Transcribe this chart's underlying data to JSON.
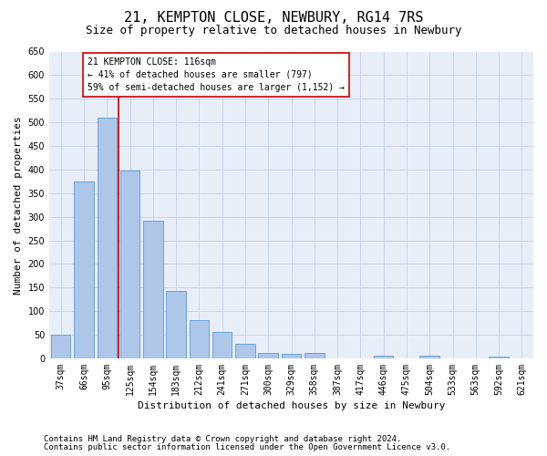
{
  "title": "21, KEMPTON CLOSE, NEWBURY, RG14 7RS",
  "subtitle": "Size of property relative to detached houses in Newbury",
  "xlabel": "Distribution of detached houses by size in Newbury",
  "ylabel": "Number of detached properties",
  "categories": [
    "37sqm",
    "66sqm",
    "95sqm",
    "125sqm",
    "154sqm",
    "183sqm",
    "212sqm",
    "241sqm",
    "271sqm",
    "300sqm",
    "329sqm",
    "358sqm",
    "387sqm",
    "417sqm",
    "446sqm",
    "475sqm",
    "504sqm",
    "533sqm",
    "563sqm",
    "592sqm",
    "621sqm"
  ],
  "values": [
    50,
    375,
    510,
    397,
    291,
    143,
    82,
    55,
    30,
    11,
    10,
    11,
    0,
    0,
    5,
    0,
    5,
    0,
    0,
    4,
    0
  ],
  "bar_color": "#aec6e8",
  "bar_edge_color": "#5b9bd5",
  "vline_color": "#cc0000",
  "vline_pos": 2.5,
  "annotation_text": "21 KEMPTON CLOSE: 116sqm\n← 41% of detached houses are smaller (797)\n59% of semi-detached houses are larger (1,152) →",
  "annotation_box_color": "#ffffff",
  "annotation_box_edge": "#cc0000",
  "ylim": [
    0,
    650
  ],
  "yticks": [
    0,
    50,
    100,
    150,
    200,
    250,
    300,
    350,
    400,
    450,
    500,
    550,
    600,
    650
  ],
  "footer_line1": "Contains HM Land Registry data © Crown copyright and database right 2024.",
  "footer_line2": "Contains public sector information licensed under the Open Government Licence v3.0.",
  "bg_color": "#ffffff",
  "ax_bg_color": "#e8eef7",
  "grid_color": "#c8d4e8",
  "title_fontsize": 11,
  "subtitle_fontsize": 9,
  "axis_label_fontsize": 8,
  "tick_fontsize": 7,
  "annotation_fontsize": 7,
  "footer_fontsize": 6.5
}
